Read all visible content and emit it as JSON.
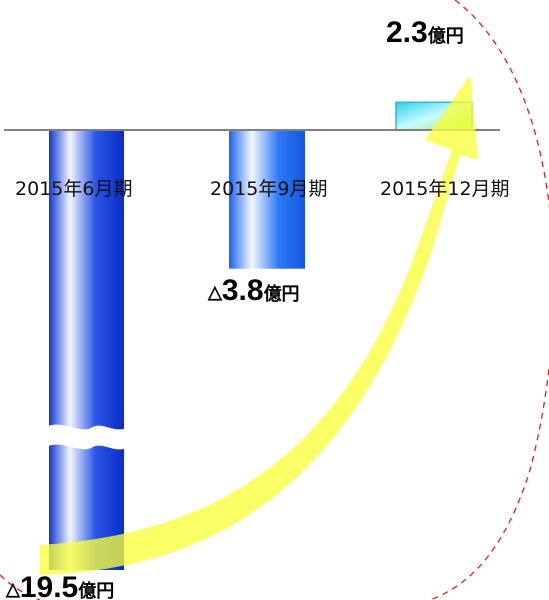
{
  "chart_data": {
    "type": "bar",
    "categories": [
      "2015年6月期",
      "2015年9月期",
      "2015年12月期"
    ],
    "values": [
      -19.5,
      -3.8,
      2.3
    ],
    "value_labels": [
      {
        "prefix": "△",
        "number": "19.5",
        "unit": "億円"
      },
      {
        "prefix": "△",
        "number": "3.8",
        "unit": "億円"
      },
      {
        "prefix": "",
        "number": "2.3",
        "unit": "億円"
      }
    ],
    "title": "",
    "xlabel": "",
    "ylabel": "",
    "ylim": [
      -20,
      3
    ],
    "axis_break": true,
    "trend_arrow": true,
    "legend": "none",
    "grid": false,
    "colors": {
      "negative_bar_dark": "#0a2fd6",
      "negative_bar_light": "#ffffff",
      "positive_bar_start": "#38d6ea",
      "positive_bar_end": "#9af05a",
      "arrow": "#f7ff3a",
      "baseline": "#808080",
      "dashed_circle": "#e02020"
    }
  }
}
